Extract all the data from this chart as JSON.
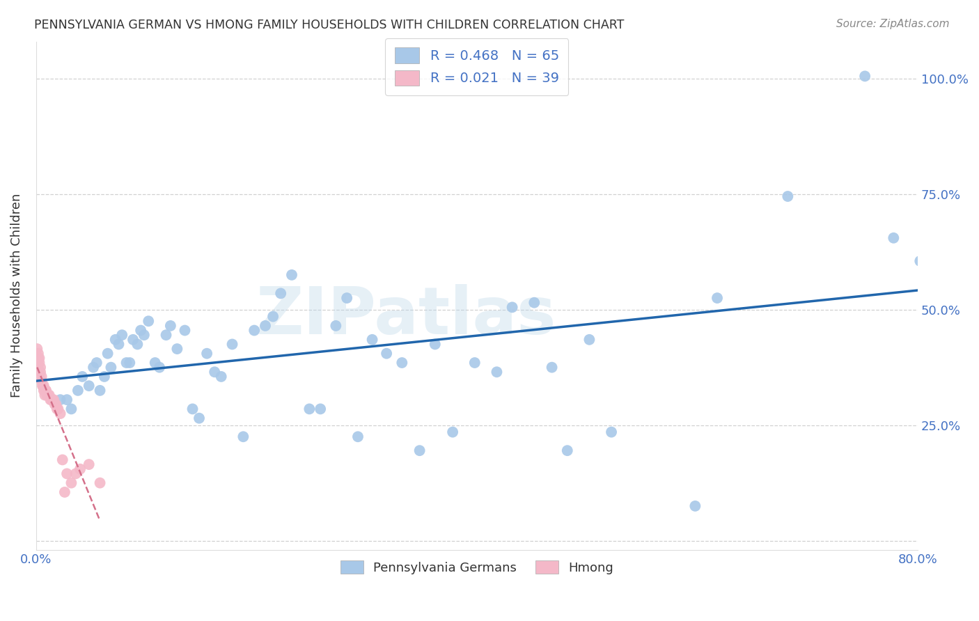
{
  "title": "PENNSYLVANIA GERMAN VS HMONG FAMILY HOUSEHOLDS WITH CHILDREN CORRELATION CHART",
  "source": "Source: ZipAtlas.com",
  "ylabel": "Family Households with Children",
  "xlim": [
    0.0,
    0.8
  ],
  "ylim": [
    -0.02,
    1.08
  ],
  "xticks": [
    0.0,
    0.1,
    0.2,
    0.3,
    0.4,
    0.5,
    0.6,
    0.7,
    0.8
  ],
  "xtick_labels": [
    "0.0%",
    "",
    "",
    "",
    "",
    "",
    "",
    "",
    "80.0%"
  ],
  "yticks": [
    0.0,
    0.25,
    0.5,
    0.75,
    1.0
  ],
  "ytick_labels_right": [
    "",
    "25.0%",
    "50.0%",
    "75.0%",
    "100.0%"
  ],
  "blue_color": "#a8c8e8",
  "pink_color": "#f4b8c8",
  "blue_line_color": "#2166ac",
  "pink_line_color": "#d4708a",
  "grid_color": "#cccccc",
  "tick_color": "#4472C4",
  "R_blue": 0.468,
  "N_blue": 65,
  "R_pink": 0.021,
  "N_pink": 39,
  "legend_labels": [
    "Pennsylvania Germans",
    "Hmong"
  ],
  "watermark": "ZIPatlas",
  "blue_x": [
    0.022,
    0.028,
    0.032,
    0.038,
    0.042,
    0.048,
    0.052,
    0.055,
    0.058,
    0.062,
    0.065,
    0.068,
    0.072,
    0.075,
    0.078,
    0.082,
    0.085,
    0.088,
    0.092,
    0.095,
    0.098,
    0.102,
    0.108,
    0.112,
    0.118,
    0.122,
    0.128,
    0.135,
    0.142,
    0.148,
    0.155,
    0.162,
    0.168,
    0.178,
    0.188,
    0.198,
    0.208,
    0.215,
    0.222,
    0.232,
    0.248,
    0.258,
    0.272,
    0.282,
    0.292,
    0.305,
    0.318,
    0.332,
    0.348,
    0.362,
    0.378,
    0.398,
    0.418,
    0.432,
    0.452,
    0.468,
    0.482,
    0.502,
    0.522,
    0.598,
    0.618,
    0.682,
    0.752,
    0.778,
    0.802
  ],
  "blue_y": [
    0.305,
    0.305,
    0.285,
    0.325,
    0.355,
    0.335,
    0.375,
    0.385,
    0.325,
    0.355,
    0.405,
    0.375,
    0.435,
    0.425,
    0.445,
    0.385,
    0.385,
    0.435,
    0.425,
    0.455,
    0.445,
    0.475,
    0.385,
    0.375,
    0.445,
    0.465,
    0.415,
    0.455,
    0.285,
    0.265,
    0.405,
    0.365,
    0.355,
    0.425,
    0.225,
    0.455,
    0.465,
    0.485,
    0.535,
    0.575,
    0.285,
    0.285,
    0.465,
    0.525,
    0.225,
    0.435,
    0.405,
    0.385,
    0.195,
    0.425,
    0.235,
    0.385,
    0.365,
    0.505,
    0.515,
    0.375,
    0.195,
    0.435,
    0.235,
    0.075,
    0.525,
    0.745,
    1.005,
    0.655,
    0.605
  ],
  "pink_x": [
    0.001,
    0.002,
    0.002,
    0.003,
    0.003,
    0.004,
    0.004,
    0.005,
    0.005,
    0.006,
    0.006,
    0.007,
    0.007,
    0.008,
    0.008,
    0.009,
    0.009,
    0.01,
    0.01,
    0.011,
    0.011,
    0.012,
    0.013,
    0.014,
    0.015,
    0.016,
    0.017,
    0.018,
    0.019,
    0.02,
    0.022,
    0.024,
    0.026,
    0.028,
    0.032,
    0.036,
    0.04,
    0.048,
    0.058
  ],
  "pink_y": [
    0.415,
    0.405,
    0.395,
    0.395,
    0.385,
    0.375,
    0.365,
    0.355,
    0.345,
    0.335,
    0.335,
    0.335,
    0.325,
    0.325,
    0.315,
    0.325,
    0.325,
    0.315,
    0.315,
    0.315,
    0.315,
    0.315,
    0.305,
    0.305,
    0.305,
    0.305,
    0.295,
    0.295,
    0.285,
    0.285,
    0.275,
    0.175,
    0.105,
    0.145,
    0.125,
    0.145,
    0.155,
    0.165,
    0.125
  ]
}
